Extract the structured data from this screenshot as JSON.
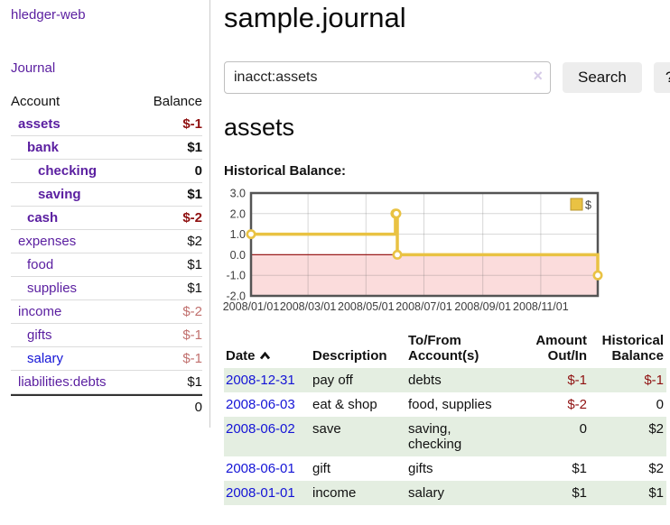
{
  "app": {
    "brand": "hledger-web",
    "nav_journal_label": "Journal"
  },
  "sidebar": {
    "columns": {
      "account": "Account",
      "balance": "Balance"
    },
    "accounts": [
      {
        "name": "assets",
        "depth": 1,
        "bold": true,
        "balance": "$-1"
      },
      {
        "name": "bank",
        "depth": 2,
        "bold": true,
        "balance": "$1"
      },
      {
        "name": "checking",
        "depth": 3,
        "bold": true,
        "balance": "0"
      },
      {
        "name": "saving",
        "depth": 3,
        "bold": true,
        "balance": "$1"
      },
      {
        "name": "cash",
        "depth": 2,
        "bold": true,
        "balance": "$-2"
      },
      {
        "name": "expenses",
        "depth": 1,
        "bold": false,
        "balance": "$2"
      },
      {
        "name": "food",
        "depth": 2,
        "bold": false,
        "balance": "$1"
      },
      {
        "name": "supplies",
        "depth": 2,
        "bold": false,
        "balance": "$1"
      },
      {
        "name": "income",
        "depth": 1,
        "bold": false,
        "balance": "$-2"
      },
      {
        "name": "gifts",
        "depth": 2,
        "bold": false,
        "balance": "$-1"
      },
      {
        "name": "salary",
        "depth": 2,
        "bold": false,
        "balance": "$-1"
      },
      {
        "name": "liabilities:debts",
        "depth": 1,
        "bold": false,
        "balance": "$1"
      }
    ],
    "total": "0"
  },
  "header": {
    "title": "sample.journal"
  },
  "search": {
    "value": "inacct:assets",
    "clear_icon": "×",
    "search_label": "Search",
    "help_label": "?"
  },
  "account_page": {
    "heading": "assets",
    "chart_label": "Historical Balance:"
  },
  "chart_data": {
    "type": "line",
    "title": "Historical Balance",
    "step": true,
    "series": [
      {
        "name": "$",
        "color": "#e9c243",
        "points": [
          {
            "date": "2008-01-01",
            "value": 1
          },
          {
            "date": "2008-06-01",
            "value": 2
          },
          {
            "date": "2008-06-02",
            "value": 2
          },
          {
            "date": "2008-06-03",
            "value": 0
          },
          {
            "date": "2008-12-31",
            "value": -1
          }
        ]
      }
    ],
    "x_range": [
      "2008-01-01",
      "2008-12-31"
    ],
    "ylim": [
      -2,
      3
    ],
    "y_ticks": [
      "3.0",
      "2.0",
      "1.0",
      "0.0",
      "-1.0",
      "-2.0"
    ],
    "x_ticks": [
      {
        "date": "2008-01-01",
        "label": "2008/01/01"
      },
      {
        "date": "2008-03-01",
        "label": "2008/03/01"
      },
      {
        "date": "2008-05-01",
        "label": "2008/05/01"
      },
      {
        "date": "2008-07-01",
        "label": "2008/07/01"
      },
      {
        "date": "2008-09-01",
        "label": "2008/09/01"
      },
      {
        "date": "2008-11-01",
        "label": "2008/11/01"
      }
    ],
    "grid": true,
    "legend_position": "top-right",
    "negative_region_color": "#fbdcdc",
    "zero_line_color": "#9b1d1d"
  },
  "register": {
    "columns": [
      {
        "label": "Date",
        "sort": "asc"
      },
      {
        "label": "Description"
      },
      {
        "label": "To/From Account(s)",
        "lines": [
          "To/From",
          "Account(s)"
        ]
      },
      {
        "label": "Amount Out/In",
        "lines": [
          "Amount",
          "Out/In"
        ]
      },
      {
        "label": "Historical Balance",
        "lines": [
          "Historical",
          "Balance"
        ]
      }
    ],
    "rows": [
      {
        "date": "2008-12-31",
        "description": "pay off",
        "accounts_lines": [
          "debts"
        ],
        "amount": "$-1",
        "balance": "$-1"
      },
      {
        "date": "2008-06-03",
        "description": "eat & shop",
        "accounts_lines": [
          "food, supplies"
        ],
        "amount": "$-2",
        "balance": "0"
      },
      {
        "date": "2008-06-02",
        "description": "save",
        "accounts_lines": [
          "saving,",
          "checking"
        ],
        "amount": "0",
        "balance": "$2"
      },
      {
        "date": "2008-06-01",
        "description": "gift",
        "accounts_lines": [
          "gifts"
        ],
        "amount": "$1",
        "balance": "$2"
      },
      {
        "date": "2008-01-01",
        "description": "income",
        "accounts_lines": [
          "salary"
        ],
        "amount": "$1",
        "balance": "$1"
      }
    ]
  }
}
